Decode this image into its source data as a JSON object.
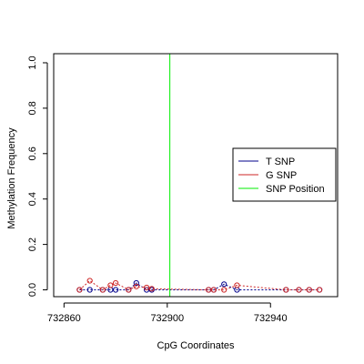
{
  "chart_data": {
    "type": "scatter",
    "xlabel": "CpG Coordinates",
    "ylabel": "Methylation Frequency",
    "xlim": [
      732856,
      732966
    ],
    "ylim": [
      -0.03,
      1.04
    ],
    "xticks": [
      732860,
      732900,
      732940
    ],
    "xtick_labels": [
      "732860",
      "732900",
      "732940"
    ],
    "yticks": [
      0.0,
      0.2,
      0.4,
      0.6,
      0.8,
      1.0
    ],
    "ytick_labels": [
      "0.0",
      "0.2",
      "0.4",
      "0.6",
      "0.8",
      "1.0"
    ],
    "grid": false,
    "legend_position": "right",
    "legend": [
      {
        "label": "T SNP",
        "color": "#00008B"
      },
      {
        "label": "G SNP",
        "color": "#CD2626"
      },
      {
        "label": "SNP Position",
        "color": "#00EE00"
      }
    ],
    "snp_position": 732901,
    "series": [
      {
        "name": "T SNP",
        "color": "#00008B",
        "points": [
          {
            "x": 732866,
            "y": 0.0
          },
          {
            "x": 732870,
            "y": 0.0
          },
          {
            "x": 732875,
            "y": 0.0
          },
          {
            "x": 732878,
            "y": 0.0
          },
          {
            "x": 732880,
            "y": 0.0
          },
          {
            "x": 732885,
            "y": 0.0
          },
          {
            "x": 732888,
            "y": 0.03
          },
          {
            "x": 732892,
            "y": 0.0
          },
          {
            "x": 732894,
            "y": 0.0
          },
          {
            "x": 732916,
            "y": 0.0
          },
          {
            "x": 732918,
            "y": 0.0
          },
          {
            "x": 732922,
            "y": 0.025
          },
          {
            "x": 732927,
            "y": 0.0
          },
          {
            "x": 732946,
            "y": 0.0
          },
          {
            "x": 732951,
            "y": 0.0
          },
          {
            "x": 732955,
            "y": 0.0
          },
          {
            "x": 732959,
            "y": 0.0
          }
        ]
      },
      {
        "name": "G SNP",
        "color": "#CD2626",
        "points": [
          {
            "x": 732866,
            "y": 0.0
          },
          {
            "x": 732870,
            "y": 0.04
          },
          {
            "x": 732875,
            "y": 0.0
          },
          {
            "x": 732878,
            "y": 0.02
          },
          {
            "x": 732880,
            "y": 0.03
          },
          {
            "x": 732885,
            "y": 0.0
          },
          {
            "x": 732888,
            "y": 0.015
          },
          {
            "x": 732892,
            "y": 0.01
          },
          {
            "x": 732894,
            "y": 0.005
          },
          {
            "x": 732916,
            "y": 0.0
          },
          {
            "x": 732918,
            "y": 0.0
          },
          {
            "x": 732922,
            "y": 0.0
          },
          {
            "x": 732927,
            "y": 0.02
          },
          {
            "x": 732946,
            "y": 0.0
          },
          {
            "x": 732951,
            "y": 0.0
          },
          {
            "x": 732955,
            "y": 0.0
          },
          {
            "x": 732959,
            "y": 0.0
          }
        ]
      }
    ]
  }
}
